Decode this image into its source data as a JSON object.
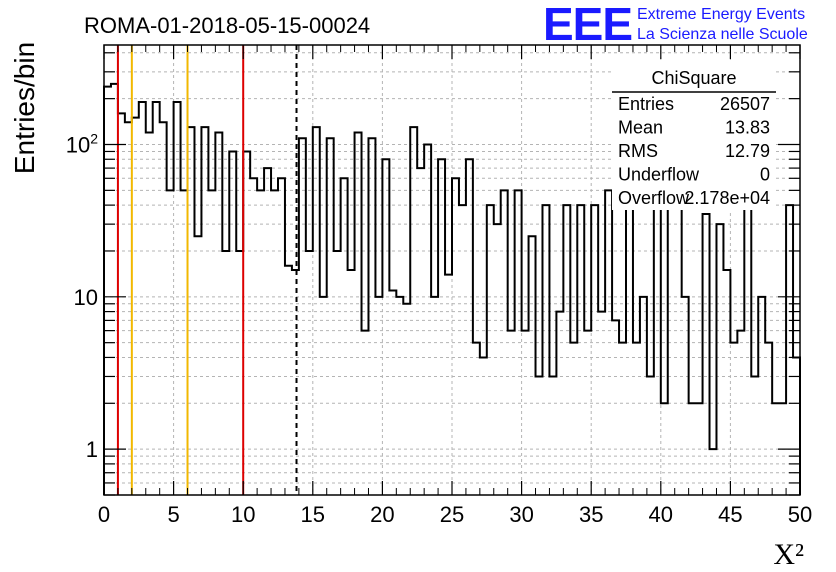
{
  "chart_data": {
    "type": "histogram",
    "title": "ROMA-01-2018-05-15-00024",
    "xlabel": "X²",
    "ylabel": "Entries/bin",
    "xlim": [
      0,
      50
    ],
    "ylim": [
      0.5,
      450
    ],
    "yscale": "log",
    "grid": true,
    "bin_width": 0.5,
    "x_ticks": [
      0,
      5,
      10,
      15,
      20,
      25,
      30,
      35,
      40,
      45,
      50
    ],
    "y_ticks": [
      1,
      10,
      100
    ],
    "y_tick_labels": [
      "1",
      "10",
      "10²"
    ],
    "values": [
      240,
      250,
      160,
      140,
      150,
      190,
      120,
      190,
      140,
      50,
      190,
      50,
      130,
      25,
      130,
      50,
      120,
      20,
      90,
      20,
      90,
      60,
      50,
      70,
      50,
      60,
      16,
      15,
      110,
      20,
      130,
      10,
      110,
      20,
      60,
      15,
      120,
      6,
      110,
      10,
      80,
      11,
      10,
      9,
      130,
      70,
      100,
      10,
      80,
      14,
      60,
      40,
      80,
      5,
      4,
      40,
      30,
      50,
      6,
      50,
      6,
      25,
      3,
      40,
      3,
      8,
      40,
      5,
      40,
      6,
      40,
      8,
      50,
      7,
      5,
      40,
      5,
      10,
      3,
      40,
      2,
      40,
      40,
      10,
      2,
      2,
      35,
      1,
      30,
      15,
      5,
      6,
      40,
      3,
      10,
      5,
      2,
      2,
      40,
      4
    ],
    "vertical_lines": [
      {
        "x": 1,
        "color": "#dd0000",
        "style": "solid"
      },
      {
        "x": 2,
        "color": "#f2b800",
        "style": "solid"
      },
      {
        "x": 6,
        "color": "#f2b800",
        "style": "solid"
      },
      {
        "x": 10,
        "color": "#dd0000",
        "style": "solid"
      },
      {
        "x": 13.83,
        "color": "#000000",
        "style": "dashed"
      }
    ],
    "stats": {
      "name": "ChiSquare",
      "rows": [
        {
          "label": "Entries",
          "value": "26507"
        },
        {
          "label": "Mean",
          "value": "13.83"
        },
        {
          "label": "RMS",
          "value": "12.79"
        },
        {
          "label": "Underflow",
          "value": "0"
        },
        {
          "label": "Overflow",
          "value": "2.178e+04"
        }
      ]
    }
  },
  "brand": {
    "logo_text": "EEE",
    "line1": "Extreme Energy Events",
    "line2": "La Scienza nelle Scuole",
    "color": "#1a1aff"
  }
}
